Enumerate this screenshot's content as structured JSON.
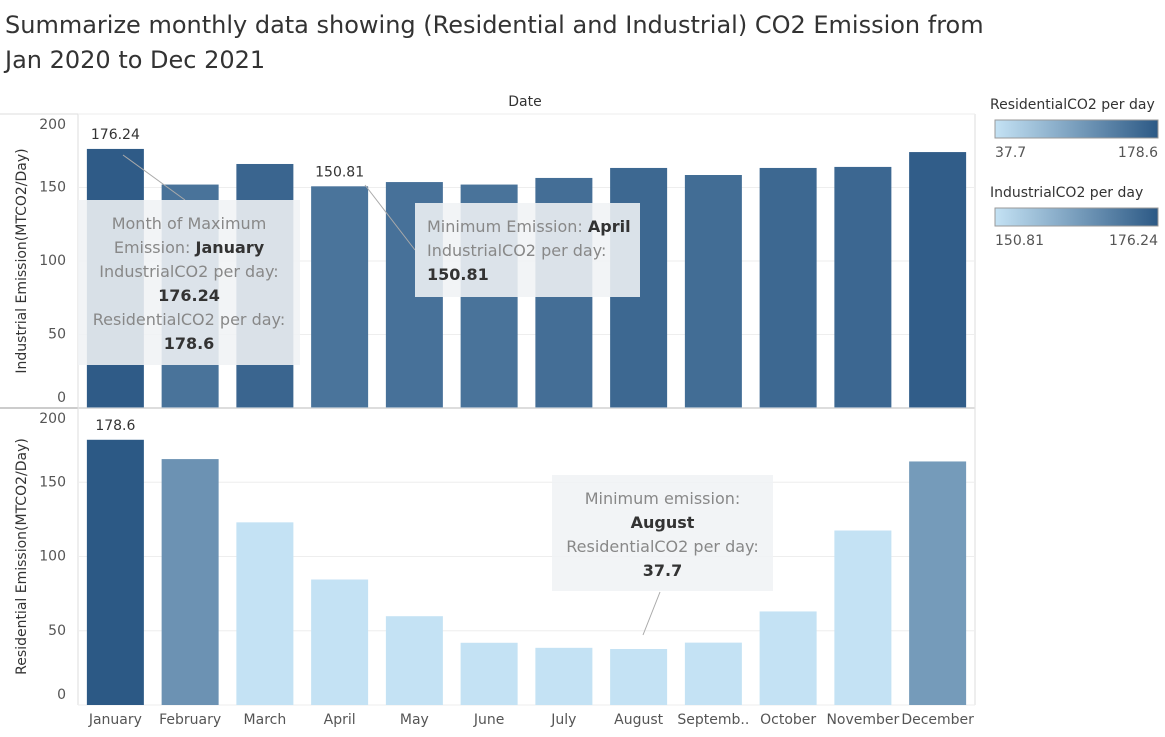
{
  "title": [
    "Summarize monthly data showing (Residential and Industrial) CO2 Emission from",
    "Jan 2020 to Dec 2021"
  ],
  "header": "Date",
  "chart_data": [
    {
      "type": "bar",
      "y_label": "Industrial Emission(MTCO2/Day)",
      "legend": 0,
      "values": [
        176.24,
        152,
        166,
        150.81,
        153.7,
        152,
        156.5,
        163.3,
        158.5,
        163.3,
        164,
        174.1
      ],
      "value_labels": [
        "176.24",
        null,
        null,
        "150.81",
        null,
        null,
        null,
        null,
        null,
        null,
        null,
        null
      ],
      "ylim": [
        0,
        200
      ],
      "yticks": [
        0,
        50,
        100,
        150,
        200
      ],
      "grid": true,
      "annotations": [
        {
          "lines": [
            [
              {
                "text": "Month of Maximum",
                "bold": false
              }
            ],
            [
              {
                "text": "Emission: ",
                "bold": false
              },
              {
                "text": "January",
                "bold": true
              }
            ],
            [
              {
                "text": "IndustrialCO2 per day:",
                "bold": false
              }
            ],
            [
              {
                "text": "176.24",
                "bold": true
              }
            ],
            [
              {
                "text": "ResidentialCO2 per day:",
                "bold": false
              }
            ],
            [
              {
                "text": "178.6",
                "bold": true
              }
            ]
          ]
        },
        {
          "lines": [
            [
              {
                "text": "Minimum Emission: ",
                "bold": false
              },
              {
                "text": "April",
                "bold": true
              }
            ],
            [
              {
                "text": "IndustrialCO2 per day:",
                "bold": false
              }
            ],
            [
              {
                "text": "150.81",
                "bold": true
              }
            ]
          ]
        }
      ]
    },
    {
      "type": "bar",
      "y_label": "Residential Emission(MTCO2/Day)",
      "legend": 1,
      "categories": [
        "January",
        "February",
        "March",
        "April",
        "May",
        "June",
        "July",
        "August",
        "Septemb..",
        "October",
        "November",
        "December"
      ],
      "values": [
        178.6,
        165.6,
        123,
        84.5,
        59.8,
        41.9,
        38.5,
        37.7,
        42,
        63,
        117.5,
        164
      ],
      "value_labels": [
        "178.6",
        null,
        null,
        null,
        null,
        null,
        null,
        null,
        null,
        null,
        null,
        null
      ],
      "ylim": [
        0,
        200
      ],
      "yticks": [
        0,
        50,
        100,
        150,
        200
      ],
      "grid": true,
      "annotations": [
        {
          "lines": [
            [
              {
                "text": "Minimum emission:",
                "bold": false
              }
            ],
            [
              {
                "text": "August",
                "bold": true
              }
            ],
            [
              {
                "text": "ResidentialCO2 per day:",
                "bold": false
              }
            ],
            [
              {
                "text": "37.7",
                "bold": true
              }
            ]
          ]
        }
      ]
    }
  ],
  "legends": [
    {
      "title": "ResidentialCO2 per day",
      "range": [
        37.7,
        178.6
      ],
      "labels": [
        "37.7",
        "178.6"
      ],
      "colors": [
        "#c4e2f4",
        "#2c5985"
      ]
    },
    {
      "title": "IndustrialCO2 per day",
      "range": [
        150.81,
        176.24
      ],
      "labels": [
        "150.81",
        "176.24"
      ],
      "colors": [
        "#c4e2f4",
        "#2c5985"
      ]
    }
  ]
}
